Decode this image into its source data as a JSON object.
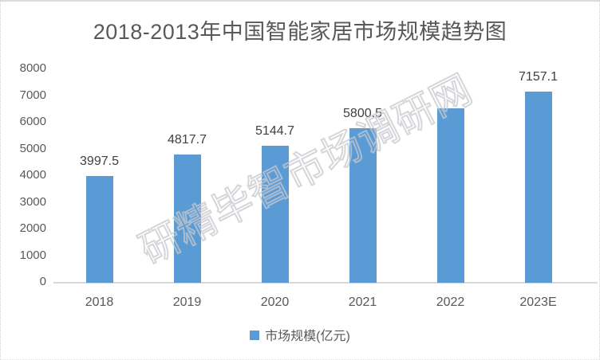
{
  "title": "2018-2013年中国智能家居市场规模趋势图",
  "watermark": "研精毕智市场调研网",
  "legend": {
    "label": "市场规模(亿元)"
  },
  "chart_data": {
    "type": "bar",
    "title": "2018-2013年中国智能家居市场规模趋势图",
    "categories": [
      "2018",
      "2019",
      "2020",
      "2021",
      "2022",
      "2023E"
    ],
    "series": [
      {
        "name": "市场规模(亿元)",
        "values": [
          3997.5,
          4817.7,
          5144.7,
          5800.5,
          6550,
          7157.1
        ],
        "data_labels": [
          "3997.5",
          "4817.7",
          "5144.7",
          "5800.5",
          "",
          "7157.1"
        ]
      }
    ],
    "xlabel": "",
    "ylabel": "",
    "ylim": [
      0,
      8000
    ],
    "yticks": [
      0,
      1000,
      2000,
      3000,
      4000,
      5000,
      6000,
      7000,
      8000
    ],
    "grid": false,
    "legend_position": "bottom"
  },
  "colors": {
    "bar": "#5B9BD5",
    "title_text": "#595959",
    "axis_text": "#595959",
    "data_label_text": "#404040",
    "axis_line": "#D9D9D9",
    "watermark": "#C6C8CC",
    "frame_border": "#DCDCDC"
  }
}
